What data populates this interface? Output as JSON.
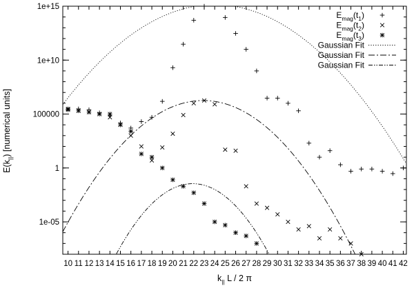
{
  "chart_data": {
    "type": "scatter",
    "title": "",
    "xlabel": {
      "main": "k",
      "sub": "||",
      "rest": " L / 2 π"
    },
    "ylabel": {
      "main": "E(k",
      "sub": "||",
      "rest": ") [numerical units]"
    },
    "x_range": [
      9.5,
      42.3
    ],
    "x_ticks": [
      10,
      11,
      12,
      13,
      14,
      15,
      16,
      17,
      18,
      19,
      20,
      21,
      22,
      23,
      24,
      25,
      26,
      27,
      28,
      29,
      30,
      31,
      32,
      33,
      34,
      35,
      36,
      37,
      38,
      39,
      40,
      41,
      42
    ],
    "y_scale": "log",
    "y_range": [
      1e-08,
      1000000000000000.0
    ],
    "y_ticks": [
      {
        "value": 1e-05,
        "label": "1e-05"
      },
      {
        "value": 1,
        "label": "1"
      },
      {
        "value": 100000,
        "label": "100000"
      },
      {
        "value": 10000000000.0,
        "label": "1e+10"
      },
      {
        "value": 1000000000000000.0,
        "label": "1e+15"
      }
    ],
    "grid": false,
    "legend_position": "top-right",
    "series": [
      {
        "name": {
          "main": "E",
          "sub": "mag",
          "rest": "(t",
          "sub2": "1",
          "end": ")"
        },
        "marker": "plus",
        "x": [
          10,
          11,
          12,
          13,
          14,
          15,
          16,
          17,
          18,
          19,
          20,
          21,
          22,
          23,
          24,
          25,
          26,
          27,
          28,
          29,
          30,
          31,
          32,
          33,
          34,
          35,
          36,
          37,
          38,
          39,
          40,
          41,
          42
        ],
        "y": [
          300000,
          300000,
          250000,
          130000,
          70000,
          15000,
          5000,
          20000,
          50000,
          1500000.0,
          2000000000.0,
          300000000000.0,
          50000000000000.0,
          1000000000000000.0,
          1500000000000000.0,
          90000000000000.0,
          3000000000000.0,
          100000000000.0,
          1000000000.0,
          3000000.0,
          3000000.0,
          1000000.0,
          200000,
          200,
          10,
          40,
          2,
          0.5,
          0.8,
          0.8,
          0.5,
          0.3,
          1
        ]
      },
      {
        "name": {
          "main": "E",
          "sub": "mag",
          "rest": "(t",
          "sub2": "2",
          "end": ")"
        },
        "marker": "cross",
        "x": [
          10,
          11,
          12,
          13,
          14,
          15,
          16,
          17,
          18,
          19,
          20,
          21,
          22,
          23,
          24,
          25,
          26,
          27,
          28,
          29,
          30,
          31,
          32,
          33,
          34,
          35,
          36,
          37,
          38
        ],
        "y": [
          300000,
          200000,
          150000,
          100000,
          50000,
          10000,
          1000,
          100,
          5,
          80,
          1500,
          80000,
          1000000.0,
          1800000.0,
          800000,
          50,
          40,
          0.02,
          0.0005,
          0.0002,
          5e-05,
          1e-05,
          2e-06,
          4e-06,
          3e-07,
          2e-06,
          3e-07,
          1e-07,
          1e-08
        ]
      },
      {
        "name": {
          "main": "E",
          "sub": "mag",
          "rest": "(t",
          "sub2": "3",
          "end": ")"
        },
        "marker": "star",
        "x": [
          10,
          11,
          12,
          13,
          14,
          15,
          16,
          17,
          18,
          19,
          20,
          21,
          22,
          23,
          24,
          25,
          26,
          27,
          28,
          29
        ],
        "y": [
          250000,
          200000,
          150000,
          100000,
          100000,
          10000,
          2500,
          20,
          10,
          1,
          0.08,
          0.02,
          0.005,
          0.0005,
          1e-05,
          5e-06,
          1e-06,
          5e-07,
          1e-07,
          2.2e-09
        ]
      }
    ],
    "fits": [
      {
        "name": "Gaussian Fit",
        "style": "dotted",
        "amplitude": 1400000000000000.0,
        "center": 24.0,
        "sigma": 2.22
      },
      {
        "name": "Gaussian Fit",
        "style": "dash-dot",
        "amplitude": 1800000.0,
        "center": 22.9,
        "sigma": 1.79
      },
      {
        "name": "Gaussian Fit",
        "style": "dash-dot-dot",
        "amplitude": 0.035,
        "center": 21.9,
        "sigma": 1.33
      }
    ]
  }
}
